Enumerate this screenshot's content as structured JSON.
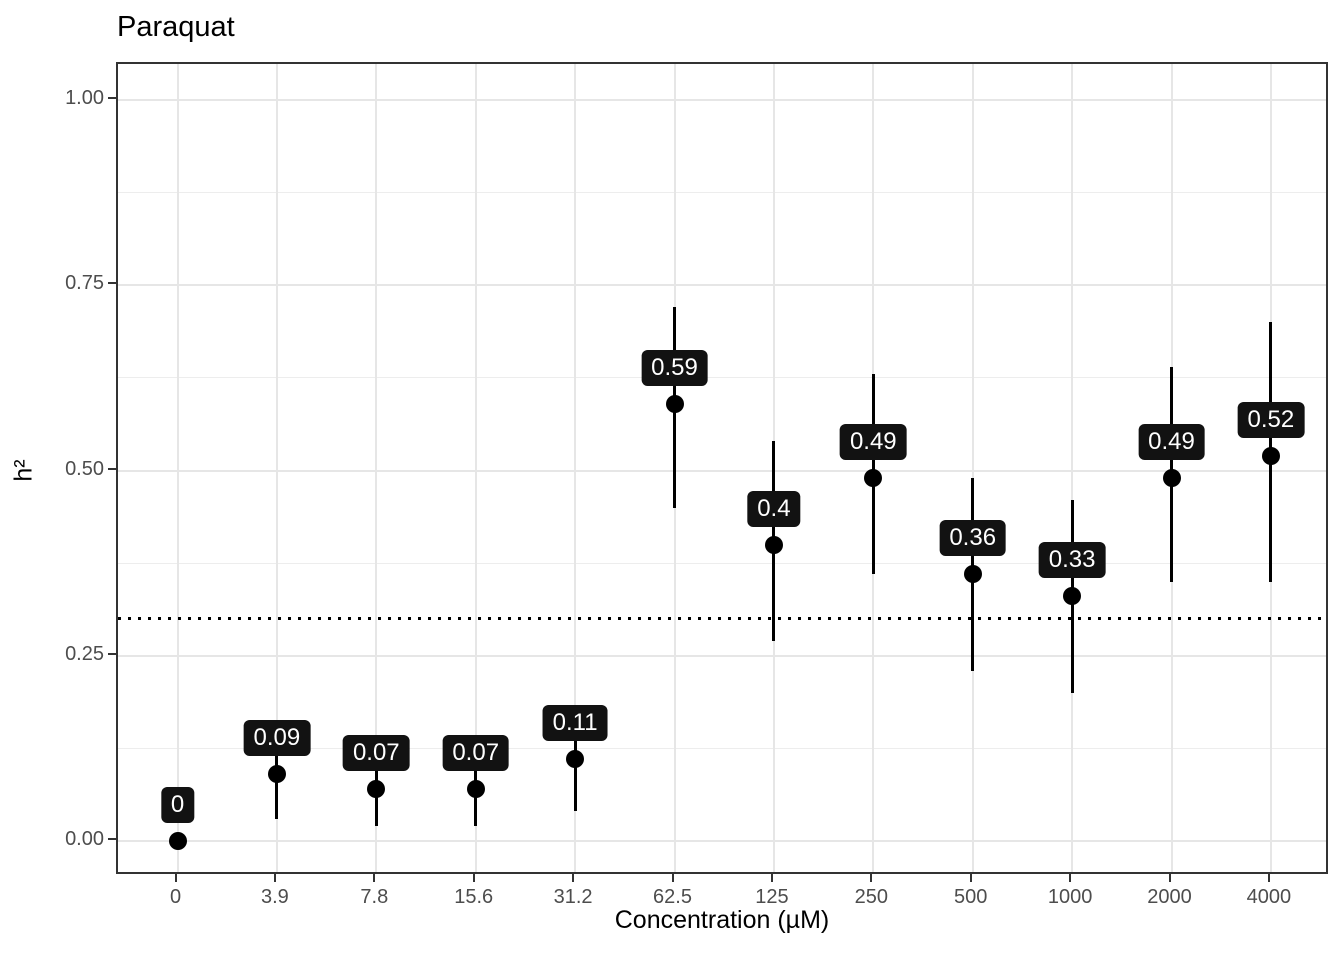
{
  "title": "Paraquat",
  "axes": {
    "x": {
      "label": "Concentration (µM)",
      "tick_labels": [
        "0",
        "3.9",
        "7.8",
        "15.6",
        "31.2",
        "62.5",
        "125",
        "250",
        "500",
        "1000",
        "2000",
        "4000"
      ]
    },
    "y": {
      "label": "h²",
      "tick_labels": [
        "0.00",
        "0.25",
        "0.50",
        "0.75",
        "1.00"
      ],
      "tick_values": [
        0,
        0.25,
        0.5,
        0.75,
        1.0
      ],
      "minor_tick_values": [
        0.125,
        0.375,
        0.625,
        0.875
      ]
    }
  },
  "reference_line": {
    "y": 0.3,
    "style": "dotted",
    "color": "#000000"
  },
  "colors": {
    "point": "#000000",
    "error_bar": "#000000",
    "label_bg": "#121212",
    "label_text": "#ffffff",
    "grid_major": "#e6e6e6",
    "grid_minor": "#ededed",
    "panel_border": "#333333",
    "tick_text": "#4d4d4d"
  },
  "chart_data": {
    "type": "scatter",
    "title": "Paraquat",
    "xlabel": "Concentration (µM)",
    "ylabel": "h²",
    "categories": [
      "0",
      "3.9",
      "7.8",
      "15.6",
      "31.2",
      "62.5",
      "125",
      "250",
      "500",
      "1000",
      "2000",
      "4000"
    ],
    "values": [
      0,
      0.09,
      0.07,
      0.07,
      0.11,
      0.59,
      0.4,
      0.49,
      0.36,
      0.33,
      0.49,
      0.52
    ],
    "point_labels": [
      "0",
      "0.09",
      "0.07",
      "0.07",
      "0.11",
      "0.59",
      "0.4",
      "0.49",
      "0.36",
      "0.33",
      "0.49",
      "0.52"
    ],
    "error_low": [
      0,
      0.03,
      0.02,
      0.02,
      0.04,
      0.45,
      0.27,
      0.36,
      0.23,
      0.2,
      0.35,
      0.35
    ],
    "error_high": [
      0,
      0.15,
      0.12,
      0.12,
      0.18,
      0.72,
      0.54,
      0.63,
      0.49,
      0.46,
      0.64,
      0.7
    ],
    "ylim": [
      -0.05,
      1.05
    ],
    "y_ticks": [
      0,
      0.25,
      0.5,
      0.75,
      1.0
    ],
    "reference_line_y": 0.3,
    "grid": true,
    "legend": "none",
    "error_bar_caps": false
  }
}
